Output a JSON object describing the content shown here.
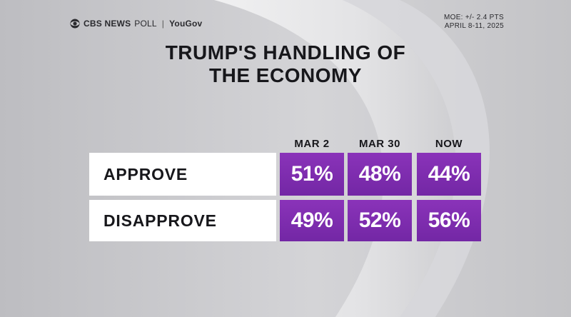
{
  "brand": {
    "network": "CBS NEWS",
    "poll": "POLL",
    "separator": "|",
    "partner": "YouGov"
  },
  "meta": {
    "moe": "MOE: +/- 2.4 PTS",
    "dates": "APRIL 8-11, 2025"
  },
  "title_line1": "TRUMP'S HANDLING OF",
  "title_line2": "THE ECONOMY",
  "colors": {
    "cell_purple": "#7d2db0",
    "label_bg": "#ffffff",
    "text_dark": "#17171b"
  },
  "chart_data": {
    "type": "table",
    "title": "TRUMP'S HANDLING OF THE ECONOMY",
    "columns": [
      "MAR 2",
      "MAR 30",
      "NOW"
    ],
    "rows": [
      {
        "label": "APPROVE",
        "values": [
          "51%",
          "48%",
          "44%"
        ]
      },
      {
        "label": "DISAPPROVE",
        "values": [
          "49%",
          "52%",
          "56%"
        ]
      }
    ]
  }
}
